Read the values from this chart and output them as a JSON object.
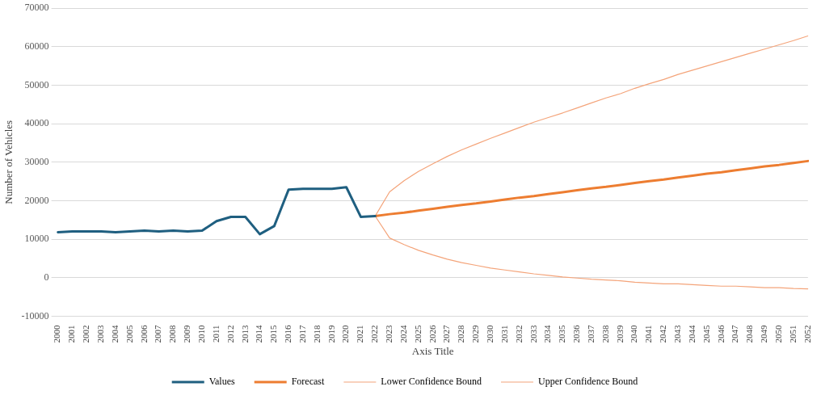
{
  "chart_data": {
    "type": "line",
    "xlabel": "Axis Title",
    "ylabel": "Number of Vehicles",
    "categories": [
      "2000",
      "2001",
      "2002",
      "2003",
      "2004",
      "2005",
      "2006",
      "2007",
      "2008",
      "2009",
      "2010",
      "2011",
      "2012",
      "2013",
      "2014",
      "2015",
      "2016",
      "2017",
      "2018",
      "2019",
      "2020",
      "2021",
      "2022",
      "2023",
      "2024",
      "2025",
      "2026",
      "2027",
      "2028",
      "2029",
      "2030",
      "2031",
      "2032",
      "2033",
      "2034",
      "2035",
      "2036",
      "2037",
      "2038",
      "2039",
      "2040",
      "2041",
      "2042",
      "2043",
      "2044",
      "2045",
      "2046",
      "2047",
      "2048",
      "2049",
      "2050",
      "2051",
      "2052"
    ],
    "series": [
      {
        "name": "Values",
        "color": "#1f5f80",
        "values": [
          11800,
          12000,
          12000,
          12000,
          11800,
          12000,
          12200,
          12000,
          12200,
          12000,
          12200,
          14700,
          15800,
          15800,
          11300,
          13400,
          22900,
          23100,
          23100,
          23100,
          23500,
          15800,
          16000,
          null,
          null,
          null,
          null,
          null,
          null,
          null,
          null,
          null,
          null,
          null,
          null,
          null,
          null,
          null,
          null,
          null,
          null,
          null,
          null,
          null,
          null,
          null,
          null,
          null,
          null,
          null,
          null,
          null,
          null
        ]
      },
      {
        "name": "Forecast",
        "color": "#ed7d31",
        "values": [
          null,
          null,
          null,
          null,
          null,
          null,
          null,
          null,
          null,
          null,
          null,
          null,
          null,
          null,
          null,
          null,
          null,
          null,
          null,
          null,
          null,
          null,
          16000,
          16500,
          16900,
          17400,
          17900,
          18400,
          18900,
          19300,
          19800,
          20300,
          20800,
          21200,
          21700,
          22200,
          22700,
          23200,
          23600,
          24100,
          24600,
          25100,
          25500,
          26000,
          26500,
          27000,
          27400,
          27900,
          28400,
          28900,
          29300,
          29800,
          30300
        ]
      },
      {
        "name": "Lower Confidence Bound",
        "color": "#f4a47a",
        "values": [
          null,
          null,
          null,
          null,
          null,
          null,
          null,
          null,
          null,
          null,
          null,
          null,
          null,
          null,
          null,
          null,
          null,
          null,
          null,
          null,
          null,
          null,
          16000,
          10300,
          8600,
          7100,
          5900,
          4800,
          3900,
          3200,
          2500,
          2000,
          1500,
          1000,
          600,
          200,
          -100,
          -400,
          -600,
          -800,
          -1200,
          -1400,
          -1600,
          -1600,
          -1800,
          -2000,
          -2200,
          -2200,
          -2400,
          -2600,
          -2600,
          -2800,
          -2900
        ]
      },
      {
        "name": "Upper Confidence Bound",
        "color": "#f4a47a",
        "values": [
          null,
          null,
          null,
          null,
          null,
          null,
          null,
          null,
          null,
          null,
          null,
          null,
          null,
          null,
          null,
          null,
          null,
          null,
          null,
          null,
          null,
          null,
          16000,
          22300,
          25200,
          27600,
          29600,
          31500,
          33200,
          34700,
          36200,
          37600,
          39000,
          40400,
          41600,
          42800,
          44100,
          45400,
          46700,
          47800,
          49200,
          50400,
          51500,
          52800,
          53900,
          55000,
          56100,
          57200,
          58300,
          59400,
          60500,
          61600,
          62800
        ]
      }
    ],
    "ylim": [
      -10000,
      70000
    ],
    "yticks": [
      -10000,
      0,
      10000,
      20000,
      30000,
      40000,
      50000,
      60000,
      70000
    ],
    "grid": "y",
    "legend": "bottom",
    "marker": "none",
    "line_style": "solid"
  }
}
